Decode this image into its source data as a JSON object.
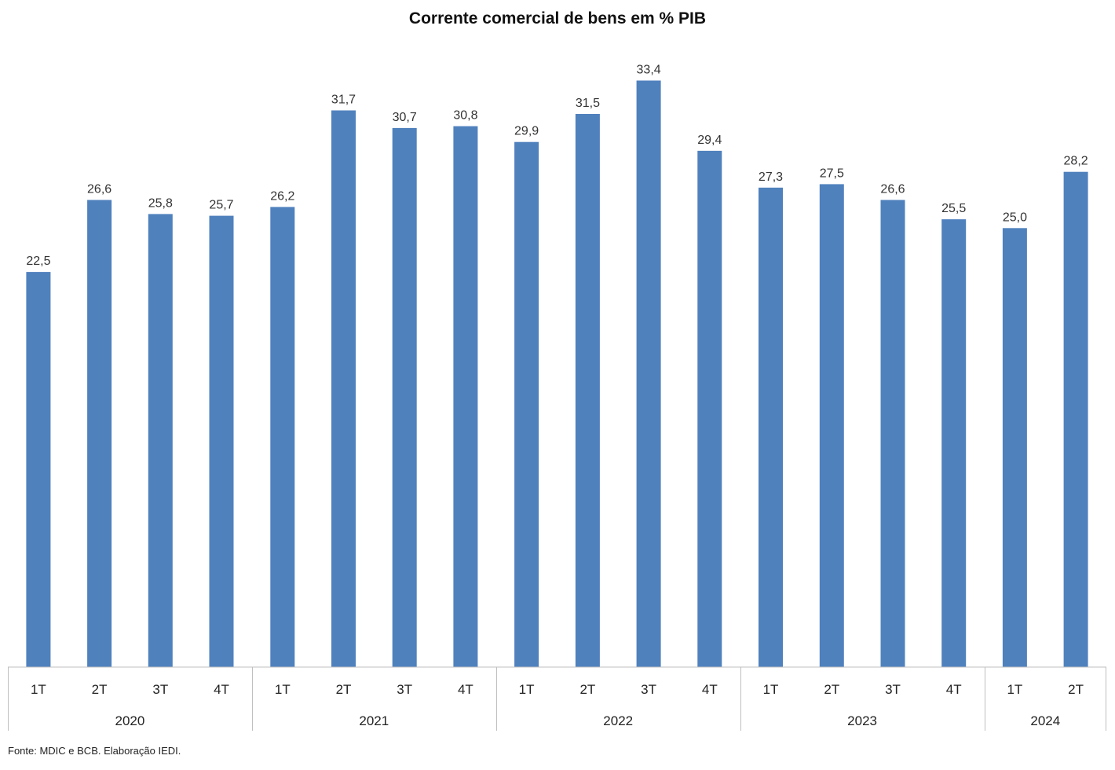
{
  "chart_data": {
    "type": "bar",
    "title": "Corrente comercial de bens em % PIB",
    "source": "Fonte: MDIC e BCB. Elaboração IEDI.",
    "categories": [
      "1T",
      "2T",
      "3T",
      "4T",
      "1T",
      "2T",
      "3T",
      "4T",
      "1T",
      "2T",
      "3T",
      "4T",
      "1T",
      "2T",
      "3T",
      "4T",
      "1T",
      "2T"
    ],
    "years": [
      {
        "label": "2020",
        "count": 4
      },
      {
        "label": "2021",
        "count": 4
      },
      {
        "label": "2022",
        "count": 4
      },
      {
        "label": "2023",
        "count": 4
      },
      {
        "label": "2024",
        "count": 2
      }
    ],
    "values": [
      22.5,
      26.6,
      25.8,
      25.7,
      26.2,
      31.7,
      30.7,
      30.8,
      29.9,
      31.5,
      33.4,
      29.4,
      27.3,
      27.5,
      26.6,
      25.5,
      25.0,
      28.2
    ],
    "value_labels": [
      "22,5",
      "26,6",
      "25,8",
      "25,7",
      "26,2",
      "31,7",
      "30,7",
      "30,8",
      "29,9",
      "31,5",
      "33,4",
      "29,4",
      "27,3",
      "27,5",
      "26,6",
      "25,5",
      "25,0",
      "28,2"
    ],
    "ylim": [
      0,
      35
    ],
    "grid": false,
    "legend": "none",
    "bar_color": "#4f81bd",
    "axis_color": "#bfbfbf"
  }
}
